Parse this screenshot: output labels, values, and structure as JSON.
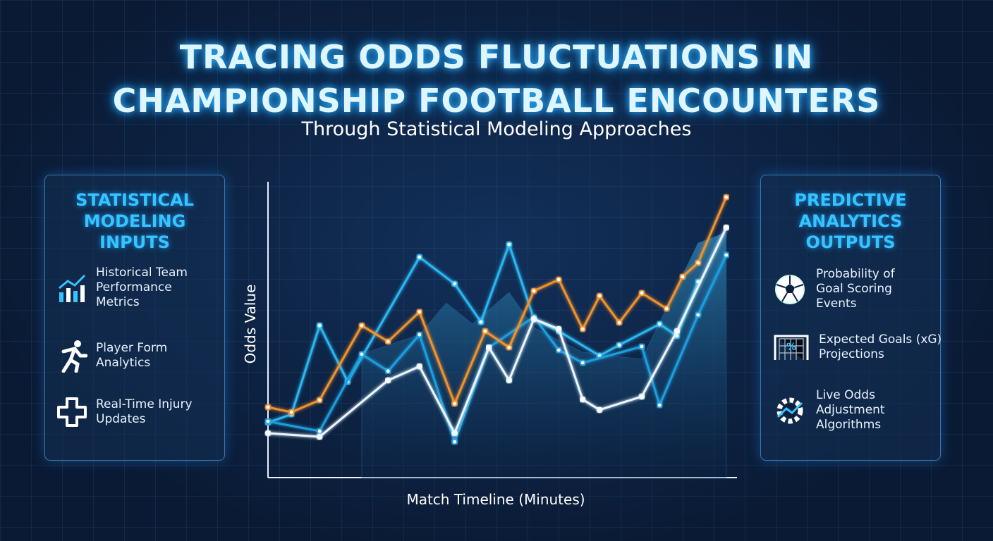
{
  "header": {
    "title": "TRACING ODDS FLUCTUATIONS IN CHAMPIONSHIP FOOTBALL ENCOUNTERS",
    "subtitle": "Through Statistical Modeling Approaches"
  },
  "left_panel": {
    "title": "STATISTICAL MODELING INPUTS",
    "items": [
      "Historical Team Performance Metrics",
      "Player Form Analytics",
      "Real-Time Injury Updates"
    ]
  },
  "right_panel": {
    "title": "PREDICTIVE ANALYTICS OUTPUTS",
    "items": [
      "Probability of Goal Scoring Events",
      "Expected Goals (xG) Projections",
      "Live Odds Adjustment Algorithms"
    ]
  },
  "chart_data": {
    "type": "line",
    "x_label": "Match Timeline (Minutes)",
    "y_label": "Odds Value",
    "xlim": [
      0,
      100
    ],
    "ylim": [
      0,
      100
    ],
    "series": [
      {
        "kind": "area",
        "color": "#1f6c9c",
        "x": [
          20.0,
          32.3,
          38.0,
          43.6,
          51.4,
          56.7,
          67.1,
          79.7,
          91.7,
          97.7
        ],
        "values": [
          41.7,
          48.3,
          59.0,
          51.9,
          62.6,
          50.7,
          42.4,
          40.0,
          79.3,
          82.9
        ]
      },
      {
        "kind": "line",
        "color": "#2bb8f2",
        "x": [
          0,
          5.0,
          11.0,
          17.0,
          32.3,
          39.8,
          45.4,
          51.4,
          56.7,
          62.0,
          70.7,
          74.9,
          83.5,
          87.2,
          91.7
        ],
        "values": [
          18.6,
          21.4,
          51.4,
          32.4,
          74.5,
          65.5,
          52.6,
          78.8,
          53.6,
          49.5,
          41.2,
          44.8,
          51.9,
          47.9,
          66.2
        ]
      },
      {
        "kind": "line",
        "color": "#1e9fe0",
        "x": [
          0,
          11.0,
          20.0,
          25.6,
          32.3,
          39.8,
          47.1,
          56.7,
          62.0,
          67.1,
          79.7,
          83.5,
          91.7,
          97.7
        ],
        "values": [
          19.0,
          15.7,
          41.7,
          36.0,
          48.3,
          12.1,
          44.0,
          54.3,
          43.1,
          38.8,
          44.3,
          24.5,
          55.0,
          75.2
        ]
      },
      {
        "kind": "line",
        "color": "#eaf5ff",
        "x": [
          0,
          11.0,
          25.6,
          32.3,
          39.8,
          47.1,
          51.4,
          56.7,
          62.0,
          67.1,
          70.7,
          79.7,
          87.2,
          97.7
        ],
        "values": [
          15.0,
          13.8,
          32.9,
          37.6,
          15.0,
          44.0,
          32.9,
          53.6,
          50.2,
          26.4,
          22.9,
          27.4,
          49.5,
          84.5
        ]
      },
      {
        "kind": "line",
        "color": "#f39229",
        "x": [
          0,
          5.0,
          11.0,
          20.0,
          25.6,
          32.3,
          39.8,
          46.3,
          51.4,
          56.7,
          62.0,
          67.1,
          70.7,
          74.9,
          79.7,
          85.0,
          88.4,
          91.7,
          97.7
        ],
        "values": [
          23.8,
          22.1,
          26.2,
          51.4,
          46.0,
          56.0,
          25.0,
          49.5,
          44.0,
          63.1,
          66.9,
          50.2,
          61.4,
          52.4,
          62.4,
          57.1,
          67.9,
          72.6,
          94.8
        ]
      }
    ]
  }
}
